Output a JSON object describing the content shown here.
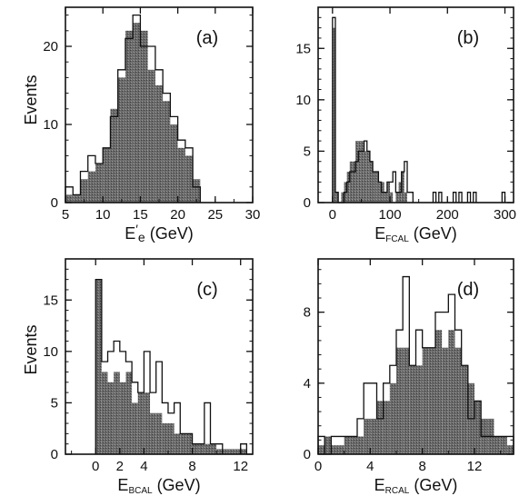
{
  "figure": {
    "ylabel_left": "Events"
  },
  "chart_data": [
    {
      "type": "histogram",
      "panel_label": "(a)",
      "xlabel": "E′e (GeV)",
      "xlabel_parts": {
        "main": "E",
        "sup": "′",
        "sub": "e",
        "unit": "(GeV)"
      },
      "ylabel": "Events",
      "xlim": [
        5,
        30
      ],
      "ylim": [
        0,
        25
      ],
      "xticks": [
        5,
        10,
        15,
        20,
        25,
        30
      ],
      "yticks": [
        0,
        10,
        20
      ],
      "bin_width": 1,
      "series": [
        {
          "style": "outline",
          "bins_x": [
            5,
            6,
            7,
            8,
            9,
            10,
            11,
            12,
            13,
            14,
            15,
            16,
            17,
            18,
            19,
            20,
            21,
            22
          ],
          "values": [
            2,
            1,
            4,
            6,
            5,
            7,
            11,
            17,
            21,
            24,
            20,
            20,
            17,
            14,
            11,
            8,
            7,
            2
          ]
        },
        {
          "style": "filled",
          "bins_x": [
            5,
            6,
            7,
            8,
            9,
            10,
            11,
            12,
            13,
            14,
            15,
            16,
            17,
            18,
            19,
            20,
            21,
            22
          ],
          "values": [
            1,
            1,
            3,
            4,
            5,
            7,
            12,
            16,
            22,
            23,
            22,
            17,
            15,
            13,
            10,
            7,
            6,
            3
          ]
        }
      ]
    },
    {
      "type": "histogram",
      "panel_label": "(b)",
      "xlabel": "EFCAL (GeV)",
      "xlabel_parts": {
        "main": "E",
        "sup": "",
        "sub": "FCAL",
        "unit": "(GeV)"
      },
      "ylabel": "",
      "xlim": [
        -25,
        315
      ],
      "ylim": [
        0,
        19
      ],
      "xticks": [
        0,
        100,
        200,
        300
      ],
      "yticks": [
        0,
        5,
        10,
        15
      ],
      "bin_width": 5,
      "series": [
        {
          "style": "outline",
          "bins_x": [
            0,
            5,
            10,
            15,
            20,
            25,
            30,
            35,
            40,
            45,
            50,
            55,
            60,
            65,
            70,
            75,
            80,
            85,
            90,
            95,
            100,
            105,
            110,
            115,
            120,
            125,
            130,
            135,
            175,
            185,
            210,
            220,
            235,
            245,
            295
          ],
          "values": [
            18,
            1,
            0,
            0,
            1,
            2,
            3,
            3,
            4,
            5,
            5,
            6,
            5,
            4,
            3,
            3,
            2,
            1,
            1,
            2,
            2,
            3,
            1,
            1,
            3,
            4,
            1,
            1,
            1,
            1,
            1,
            1,
            1,
            1,
            1
          ]
        },
        {
          "style": "filled",
          "bins_x": [
            0,
            5,
            15,
            20,
            25,
            30,
            35,
            40,
            45,
            50,
            55,
            60,
            65,
            70,
            75,
            80,
            85,
            90,
            95,
            100,
            110,
            115,
            120,
            125
          ],
          "values": [
            17,
            1,
            1,
            2,
            3,
            4,
            4,
            6,
            6,
            6,
            5,
            5,
            4,
            3,
            3,
            2,
            2,
            1,
            2,
            1,
            1,
            2,
            3,
            1
          ]
        }
      ]
    },
    {
      "type": "histogram",
      "panel_label": "(c)",
      "xlabel": "EBCAL (GeV)",
      "xlabel_parts": {
        "main": "E",
        "sup": "",
        "sub": "BCAL",
        "unit": "(GeV)"
      },
      "ylabel": "Events",
      "xlim": [
        -2.5,
        13
      ],
      "ylim": [
        0,
        19
      ],
      "xticks": [
        0,
        4,
        8,
        12
      ],
      "tick_labels": [
        "0",
        "4",
        "8",
        "12"
      ],
      "minor_labels": {
        "2": "2"
      },
      "yticks": [
        0,
        5,
        10,
        15
      ],
      "bin_width": 0.5,
      "series": [
        {
          "style": "outline",
          "bins_x": [
            0,
            0.5,
            1,
            1.5,
            2,
            2.5,
            3,
            3.5,
            4,
            4.5,
            5,
            5.5,
            6,
            6.5,
            7,
            7.5,
            8,
            8.5,
            9,
            9.5,
            10,
            12
          ],
          "values": [
            17,
            9,
            10,
            11,
            10,
            9,
            7,
            6,
            10,
            6,
            9,
            5,
            4,
            5,
            2,
            2,
            1,
            1,
            5,
            1,
            1,
            1
          ]
        },
        {
          "style": "filled",
          "bins_x": [
            0,
            0.5,
            1,
            1.5,
            2,
            2.5,
            3,
            3.5,
            4,
            4.5,
            5,
            5.5,
            6,
            6.5,
            7,
            7.5,
            8,
            8.5,
            9,
            9.5,
            10,
            10.5,
            11,
            11.5,
            12
          ],
          "values": [
            17,
            8,
            7,
            8,
            7,
            8,
            5,
            6,
            6,
            4,
            4,
            3,
            3,
            2,
            2,
            2,
            1,
            1,
            1,
            1,
            0.5,
            0.5,
            0.5,
            0.5,
            0.5
          ]
        }
      ]
    },
    {
      "type": "histogram",
      "panel_label": "(d)",
      "xlabel": "ERCAL (GeV)",
      "xlabel_parts": {
        "main": "E",
        "sup": "",
        "sub": "RCAL",
        "unit": "(GeV)"
      },
      "ylabel": "",
      "xlim": [
        0,
        15
      ],
      "ylim": [
        0,
        11
      ],
      "xticks": [
        0,
        4,
        8,
        12
      ],
      "yticks": [
        0,
        4,
        8
      ],
      "bin_width": 0.5,
      "series": [
        {
          "style": "outline",
          "bins_x": [
            0,
            0.5,
            1,
            1.5,
            2,
            2.5,
            3,
            3.5,
            4,
            4.5,
            5,
            5.5,
            6,
            6.5,
            7,
            7.5,
            8,
            8.5,
            9,
            9.5,
            10,
            10.5,
            11,
            11.5,
            12,
            12.5,
            13,
            13.5,
            14,
            14.5
          ],
          "values": [
            1,
            0,
            1,
            1,
            1,
            1,
            2,
            4,
            4,
            2,
            4,
            5,
            7,
            10,
            5,
            7,
            6,
            6,
            8,
            8,
            9,
            7,
            5,
            2,
            3,
            1,
            1,
            1,
            1,
            1
          ]
        },
        {
          "style": "filled",
          "bins_x": [
            0,
            0.5,
            1,
            1.5,
            2,
            2.5,
            3,
            3.5,
            4,
            4.5,
            5,
            5.5,
            6,
            6.5,
            7,
            7.5,
            8,
            8.5,
            9,
            9.5,
            10,
            10.5,
            11,
            11.5,
            12,
            12.5,
            13,
            13.5,
            14,
            14.5
          ],
          "values": [
            0.5,
            1,
            0.5,
            0.5,
            1,
            1,
            1,
            2,
            2,
            3,
            3,
            4,
            6,
            6,
            5,
            5,
            6,
            6,
            7,
            6,
            7,
            6,
            5,
            4,
            3,
            2,
            2,
            1,
            1,
            0.5
          ]
        }
      ]
    }
  ]
}
